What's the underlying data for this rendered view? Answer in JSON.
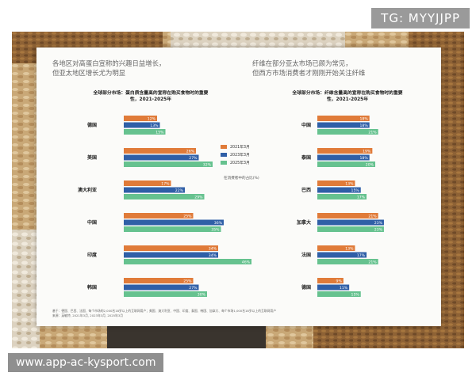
{
  "watermark": {
    "tg": "TG: MYYJJPP",
    "url": "www.app-ac-kysport.com"
  },
  "header": {
    "left": [
      "各地区对高蛋白宣称的兴趣日益增长，",
      "但亚太地区增长尤为明显"
    ],
    "right": [
      "纤维在部分亚太市场已颇为常见，",
      "但西方市场消费者才刚刚开始关注纤维"
    ]
  },
  "legend": {
    "items": [
      "2021年3月",
      "2023年3月",
      "2025年3月"
    ],
    "note": "在消费者中的占比(%)"
  },
  "colors": {
    "s2021": "#e07b39",
    "s2023": "#2f5fa7",
    "s2025": "#66c28f",
    "accent": "#e8702a"
  },
  "footnote": [
    "基于：德国、巴西、法国、每个市场的2,000名18岁以上的互联网用户；美国、澳大利亚、中国、印度、泰国、韩国、加拿大、每个市场1,000名18岁以上的互联网用户",
    "来源：英敏特, 2021年3月, 2023年3月, 2025年3月"
  ],
  "chart_data": [
    {
      "type": "bar",
      "title": "全球部分市场：蛋白质含量高的宣称在购买食物时的重要性，2021-2025年",
      "categories": [
        "德国",
        "美国",
        "澳大利亚",
        "中国",
        "印度",
        "韩国"
      ],
      "series": [
        {
          "name": "2021年3月",
          "values": [
            12,
            26,
            17,
            25,
            34,
            25
          ]
        },
        {
          "name": "2023年3月",
          "values": [
            13,
            27,
            22,
            36,
            34,
            27
          ]
        },
        {
          "name": "2025年3月",
          "values": [
            15,
            32,
            29,
            35,
            46,
            30
          ]
        }
      ],
      "value_labels": [
        [
          "12%",
          "13%",
          "15%"
        ],
        [
          "26%",
          "27%",
          "32%"
        ],
        [
          "17%",
          "22%",
          "29%"
        ],
        [
          "25%",
          "36%",
          "35%"
        ],
        [
          "34%",
          "34%",
          "46%"
        ],
        [
          "25%",
          "27%",
          "30%"
        ]
      ],
      "orientation": "horizontal",
      "xlim": [
        0,
        50
      ]
    },
    {
      "type": "bar",
      "title": "全球部分市场：纤维含量高的宣称在购买食物时的重要性，2021-2025年",
      "categories": [
        "中国",
        "泰国",
        "巴西",
        "加拿大",
        "法国",
        "德国"
      ],
      "series": [
        {
          "name": "2021年3月",
          "values": [
            18,
            19,
            13,
            21,
            13,
            9
          ]
        },
        {
          "name": "2023年3月",
          "values": [
            18,
            18,
            15,
            23,
            17,
            11
          ]
        },
        {
          "name": "2025年3月",
          "values": [
            21,
            20,
            17,
            23,
            21,
            15
          ]
        }
      ],
      "value_labels": [
        [
          "18%",
          "18%",
          "21%"
        ],
        [
          "19%",
          "18%",
          "20%"
        ],
        [
          "13%",
          "15%",
          "17%"
        ],
        [
          "21%",
          "23%",
          "23%"
        ],
        [
          "13%",
          "17%",
          "21%"
        ],
        [
          "9%",
          "11%",
          "15%"
        ]
      ],
      "orientation": "horizontal",
      "xlim": [
        0,
        30
      ]
    }
  ]
}
